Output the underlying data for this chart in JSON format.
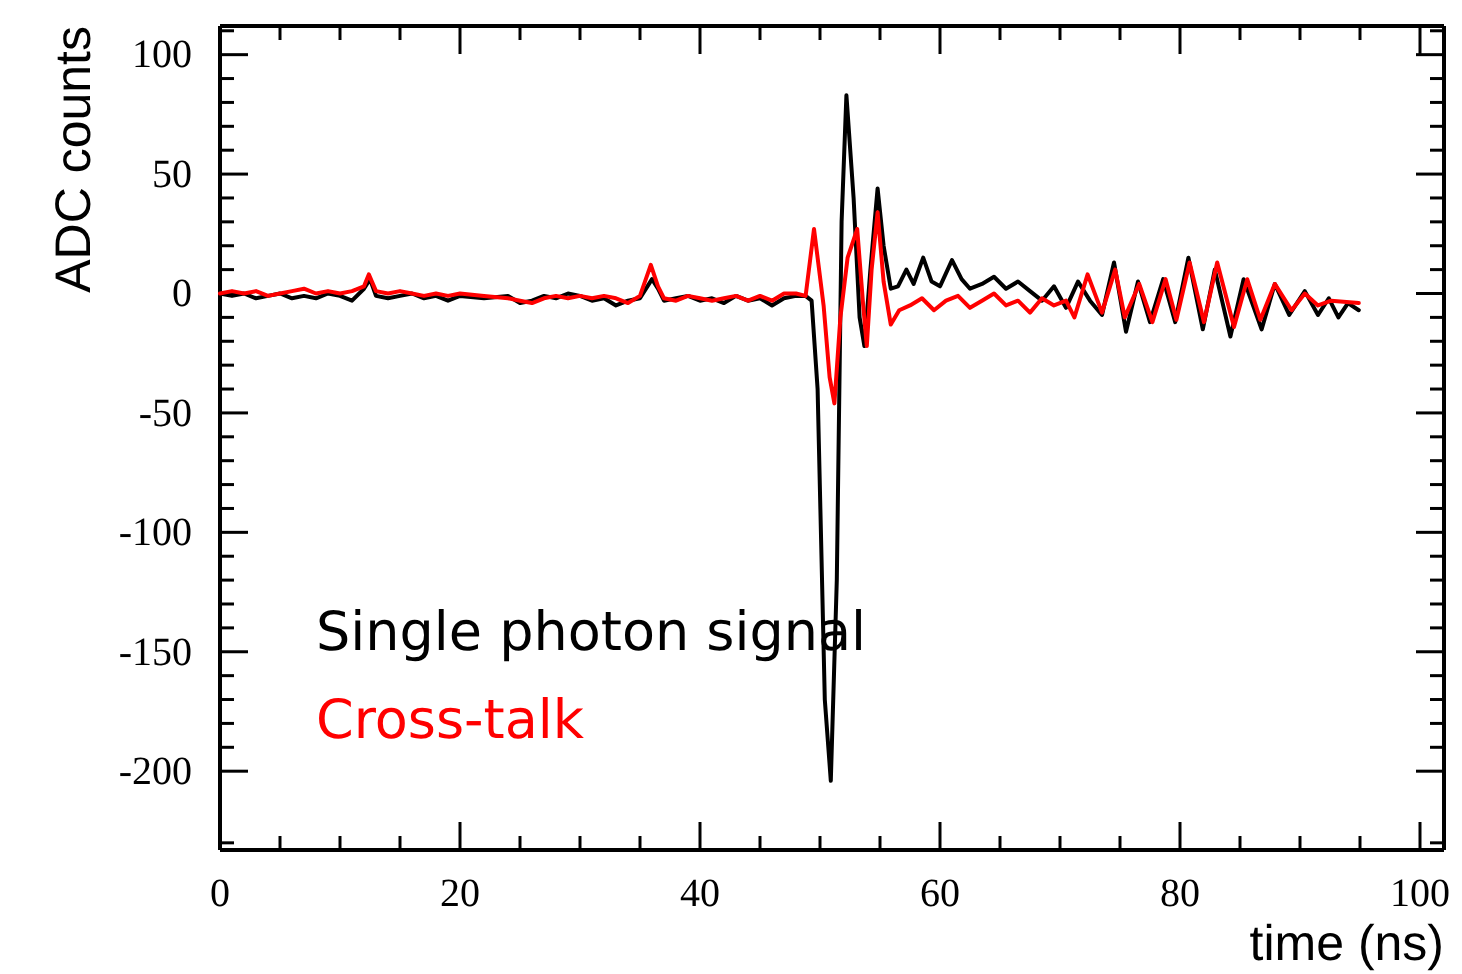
{
  "chart_data": {
    "type": "line",
    "xlabel": "time (ns)",
    "ylabel": "ADC counts",
    "xlim": [
      0,
      102
    ],
    "ylim": [
      -233,
      112
    ],
    "xticks": [
      0,
      {
        "value": 5,
        "label": null
      },
      {
        "value": 10,
        "label": null
      },
      {
        "value": 15,
        "label": null
      },
      20,
      {
        "value": 25,
        "label": null
      },
      {
        "value": 30,
        "label": null
      },
      {
        "value": 35,
        "label": null
      },
      40,
      {
        "value": 45,
        "label": null
      },
      {
        "value": 50,
        "label": null
      },
      {
        "value": 55,
        "label": null
      },
      60,
      {
        "value": 65,
        "label": null
      },
      {
        "value": 70,
        "label": null
      },
      {
        "value": 75,
        "label": null
      },
      80,
      {
        "value": 85,
        "label": null
      },
      {
        "value": 90,
        "label": null
      },
      {
        "value": 95,
        "label": null
      },
      100
    ],
    "yticks": [
      {
        "value": -230,
        "label": null
      },
      -200,
      {
        "value": -190,
        "label": null
      },
      {
        "value": -180,
        "label": null
      },
      {
        "value": -170,
        "label": null
      },
      {
        "value": -160,
        "label": null
      },
      -150,
      {
        "value": -140,
        "label": null
      },
      {
        "value": -130,
        "label": null
      },
      {
        "value": -120,
        "label": null
      },
      {
        "value": -110,
        "label": null
      },
      -100,
      {
        "value": -90,
        "label": null
      },
      {
        "value": -80,
        "label": null
      },
      {
        "value": -70,
        "label": null
      },
      {
        "value": -60,
        "label": null
      },
      -50,
      {
        "value": -40,
        "label": null
      },
      {
        "value": -30,
        "label": null
      },
      {
        "value": -20,
        "label": null
      },
      {
        "value": -10,
        "label": null
      },
      0,
      {
        "value": 10,
        "label": null
      },
      {
        "value": 20,
        "label": null
      },
      {
        "value": 30,
        "label": null
      },
      {
        "value": 40,
        "label": null
      },
      50,
      {
        "value": 60,
        "label": null
      },
      {
        "value": 70,
        "label": null
      },
      {
        "value": 80,
        "label": null
      },
      {
        "value": 90,
        "label": null
      },
      100,
      {
        "value": 110,
        "label": null
      }
    ],
    "grid": false,
    "legend": "bottom left",
    "marker": "none",
    "line_style": "solid",
    "series": [
      {
        "name": "Single photon signal",
        "color": "#000000",
        "x": [
          0,
          1,
          2,
          3,
          4,
          5,
          6,
          7,
          8,
          9,
          10,
          11,
          12,
          12.5,
          13,
          14,
          15,
          16,
          17,
          18,
          19,
          20,
          22,
          24,
          25,
          26,
          27,
          28,
          29,
          30,
          31,
          32,
          33,
          34,
          35,
          36,
          36.5,
          37,
          38,
          39,
          40,
          41,
          42,
          43,
          44,
          45,
          46,
          47,
          48,
          48.8,
          49.3,
          49.8,
          50.4,
          50.9,
          51.4,
          51.8,
          52.2,
          52.8,
          53.3,
          53.7,
          54.2,
          54.8,
          55.3,
          55.9,
          56.5,
          57.2,
          57.8,
          58.6,
          59.3,
          60,
          61,
          61.8,
          62.5,
          63.5,
          64.5,
          65.5,
          66.5,
          67.5,
          68.5,
          69.5,
          70.5,
          71.5,
          72.5,
          73.5,
          74.5,
          75.5,
          76.5,
          77.5,
          78.6,
          79.6,
          80.7,
          81.9,
          82.9,
          84.2,
          85.3,
          86.8,
          87.9,
          89.1,
          90.4,
          91.5,
          92.4,
          93.2,
          94,
          94.9
        ],
        "values": [
          0,
          -1,
          0,
          -2,
          -1,
          0,
          -2,
          -1,
          -2,
          0,
          -1,
          -3,
          2,
          6,
          -1,
          -2,
          -1,
          0,
          -2,
          -1,
          -3,
          -1,
          -2,
          -1,
          -4,
          -3,
          -1,
          -2,
          0,
          -1,
          -3,
          -2,
          -5,
          -3,
          -2,
          6,
          2,
          -3,
          -2,
          -1,
          -3,
          -2,
          -4,
          -1,
          -3,
          -2,
          -5,
          -2,
          -1,
          -1,
          -3,
          -40,
          -170,
          -204,
          -120,
          30,
          83,
          40,
          -10,
          -22,
          10,
          44,
          20,
          2,
          3,
          10,
          4,
          15,
          5,
          3,
          14,
          6,
          2,
          4,
          7,
          2,
          5,
          1,
          -3,
          3,
          -6,
          5,
          -3,
          -9,
          13,
          -16,
          5,
          -12,
          6,
          -12,
          15,
          -15,
          10,
          -18,
          6,
          -15,
          4,
          -9,
          1,
          -9,
          -2,
          -10,
          -4,
          -7
        ]
      },
      {
        "name": "Cross-talk",
        "color": "#ff0000",
        "x": [
          0,
          1,
          2,
          3,
          4,
          5,
          6,
          7,
          8,
          9,
          10,
          11,
          12,
          12.4,
          13,
          14,
          15,
          16,
          17,
          18,
          19,
          20,
          22,
          24,
          25,
          26,
          27,
          28,
          29,
          30,
          31,
          32,
          33,
          34,
          35,
          35.9,
          36.5,
          37,
          38,
          39,
          40,
          41,
          42,
          43,
          44,
          45,
          46,
          47,
          48,
          48.8,
          49.5,
          50.3,
          50.8,
          51.2,
          51.7,
          52.3,
          53.1,
          53.6,
          53.9,
          54.3,
          54.8,
          55.3,
          55.9,
          56.6,
          57.5,
          58.5,
          59.5,
          60.5,
          61.5,
          62.5,
          63.5,
          64.5,
          65.5,
          66.5,
          67.5,
          68.5,
          69.5,
          70.5,
          71.2,
          72.3,
          73.5,
          74.6,
          75.4,
          76.6,
          77.7,
          78.8,
          79.7,
          80.8,
          82,
          83.1,
          84.5,
          85.6,
          86.7,
          87.9,
          89.3,
          90.4,
          91.5,
          92.6,
          94.9
        ],
        "values": [
          0,
          1,
          0,
          1,
          -1,
          0,
          1,
          2,
          0,
          1,
          0,
          1,
          3,
          8,
          1,
          0,
          1,
          0,
          -1,
          0,
          -1,
          0,
          -1,
          -2,
          -3,
          -4,
          -2,
          -1,
          -2,
          -1,
          -2,
          -1,
          -2,
          -4,
          -1,
          12,
          3,
          -2,
          -3,
          -1,
          -2,
          -3,
          -2,
          -1,
          -3,
          -1,
          -3,
          0,
          0,
          -1,
          27,
          -5,
          -35,
          -46,
          -10,
          15,
          27,
          -5,
          -22,
          10,
          34,
          5,
          -13,
          -7,
          -5,
          -2,
          -7,
          -3,
          -1,
          -6,
          -3,
          0,
          -5,
          -3,
          -8,
          -2,
          -5,
          -3,
          -10,
          8,
          -8,
          10,
          -10,
          4,
          -12,
          6,
          -11,
          13,
          -12,
          13,
          -14,
          6,
          -11,
          4,
          -7,
          0,
          -5,
          -3,
          -4
        ]
      }
    ]
  }
}
